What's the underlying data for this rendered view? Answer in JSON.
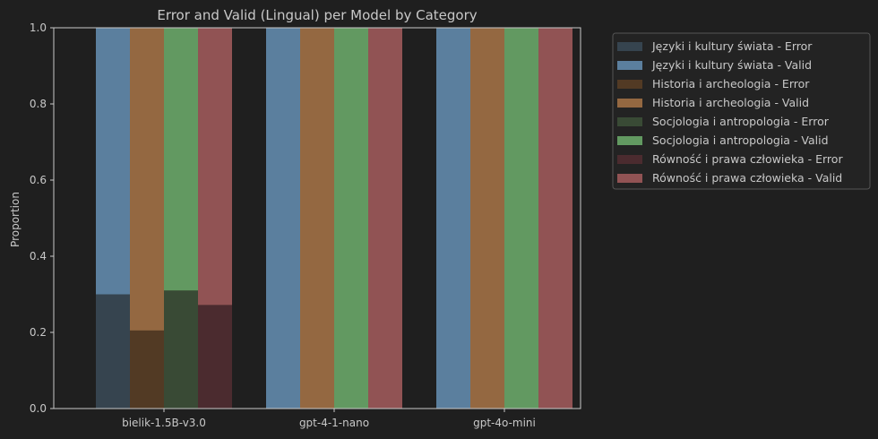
{
  "chart_data": {
    "type": "bar",
    "stacked": true,
    "title": "Error and Valid (Lingual) per Model by Category",
    "xlabel": "",
    "ylabel": "Proportion",
    "ylim": [
      0,
      1.0
    ],
    "yticks": [
      "0.0",
      "0.2",
      "0.4",
      "0.6",
      "0.8",
      "1.0"
    ],
    "categories": [
      "bielik-1.5B-v3.0",
      "gpt-4-1-nano",
      "gpt-4o-mini"
    ],
    "groups": [
      {
        "name": "Języki i kultury świata",
        "color_error": "#36444f",
        "color_valid": "#5b7f9e",
        "error": [
          0.3,
          0.0,
          0.0
        ],
        "valid": [
          0.7,
          1.0,
          1.0
        ]
      },
      {
        "name": "Historia i archeologia",
        "color_error": "#523a24",
        "color_valid": "#946841",
        "error": [
          0.205,
          0.0,
          0.0
        ],
        "valid": [
          0.795,
          1.0,
          1.0
        ]
      },
      {
        "name": "Socjologia i antropologia",
        "color_error": "#394a35",
        "color_valid": "#629961",
        "error": [
          0.31,
          0.0,
          0.0
        ],
        "valid": [
          0.69,
          1.0,
          1.0
        ]
      },
      {
        "name": "Równość i prawa człowieka",
        "color_error": "#4b2b2f",
        "color_valid": "#915354",
        "error": [
          0.272,
          0.0,
          0.0
        ],
        "valid": [
          0.728,
          1.0,
          1.0
        ]
      }
    ],
    "legend": {
      "placement": "outside-right",
      "entries": [
        "Języki i kultury świata - Error",
        "Języki i kultury świata - Valid",
        "Historia i archeologia - Error",
        "Historia i archeologia - Valid",
        "Socjologia i antropologia - Error",
        "Socjologia i antropologia - Valid",
        "Równość i prawa człowieka - Error",
        "Równość i prawa człowieka - Valid"
      ]
    },
    "grid": false
  }
}
